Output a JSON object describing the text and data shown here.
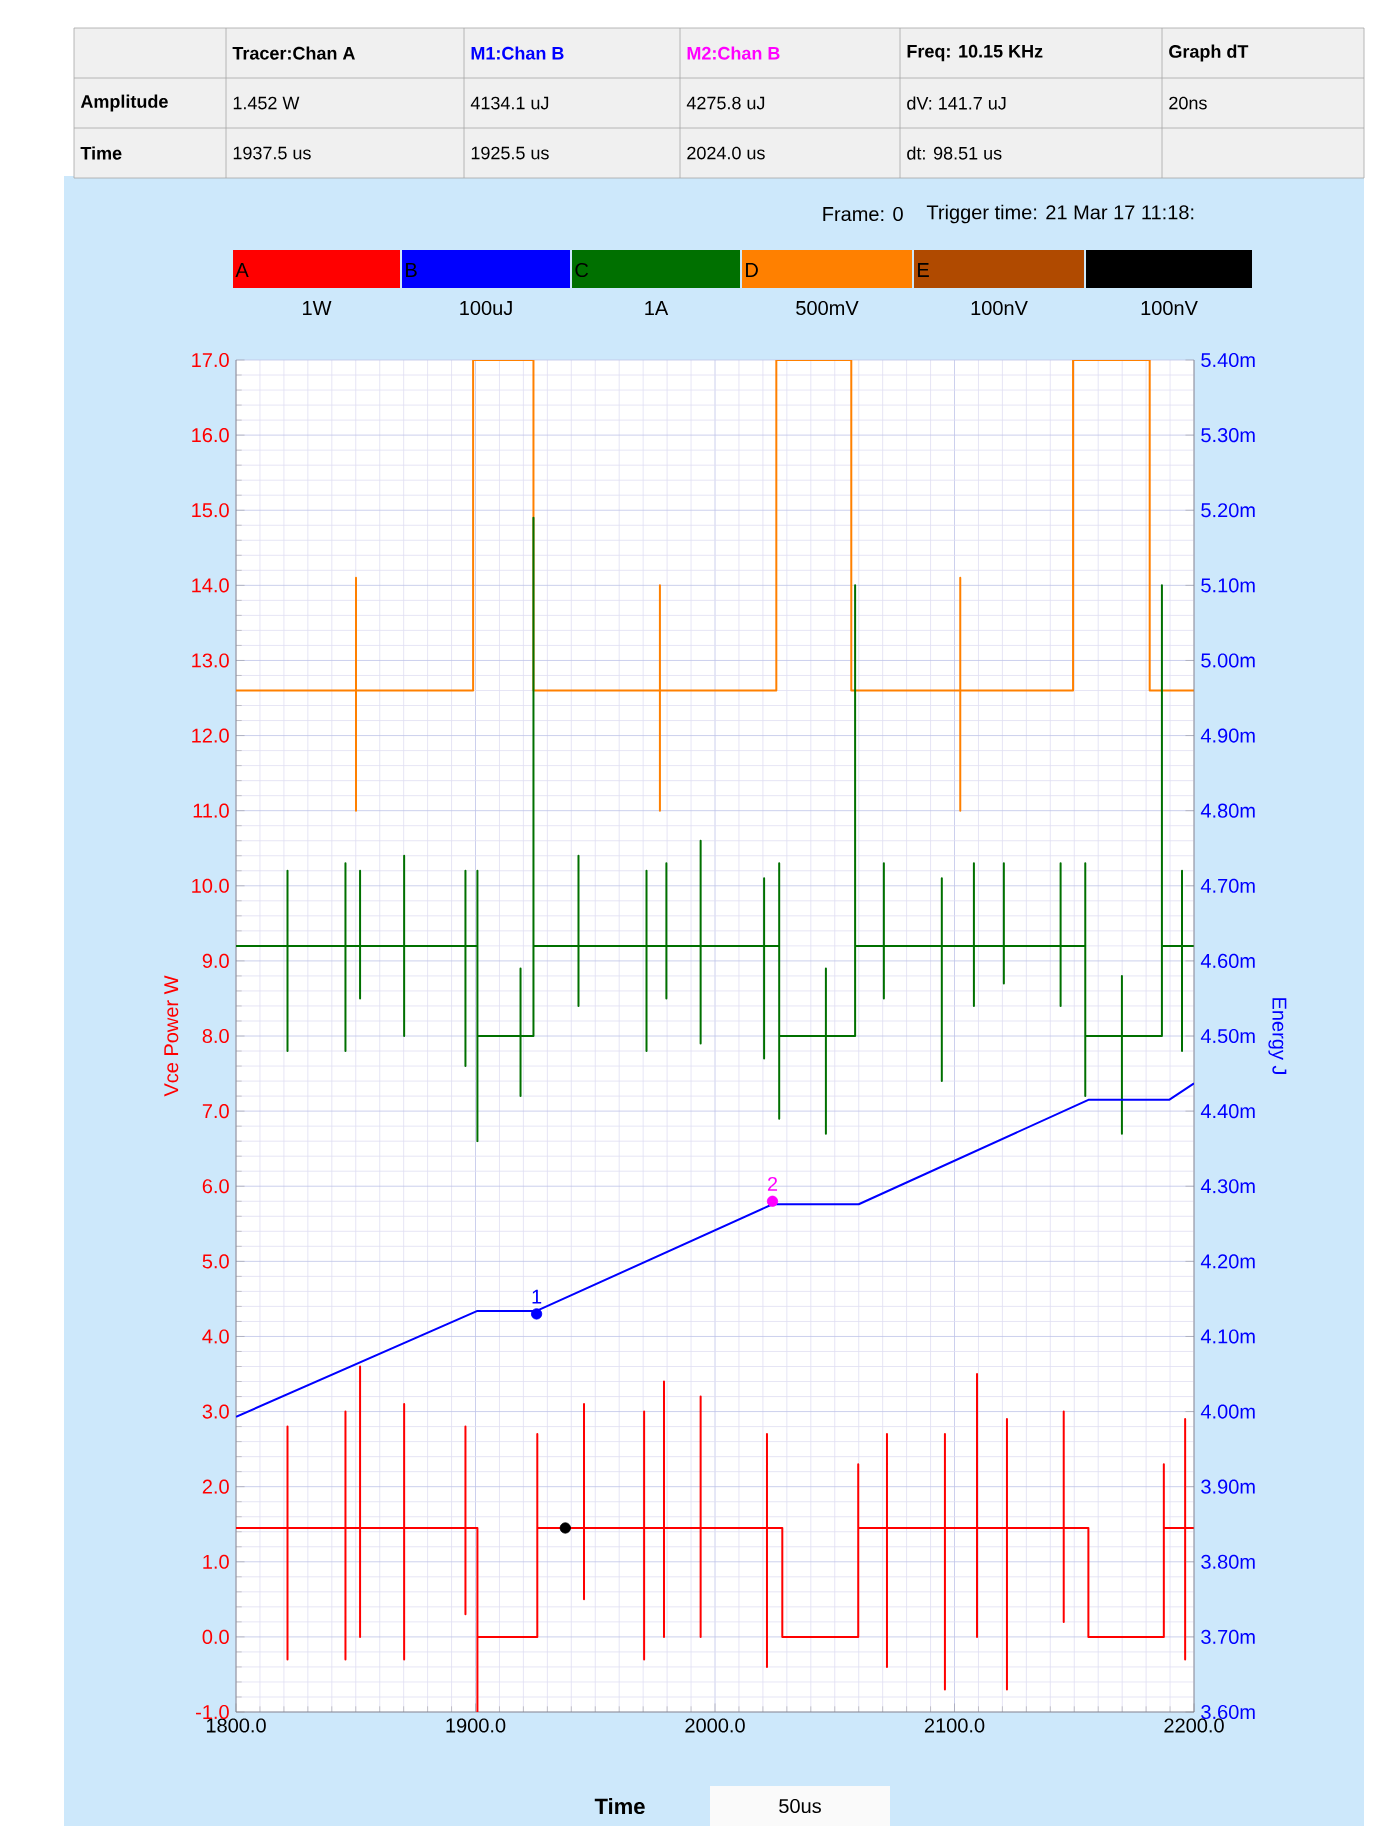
{
  "chart_data": {
    "type": "line",
    "xlabel": "Time",
    "ylabel": "Vce Power W",
    "y2label": "Energy J",
    "grid": true,
    "legend": "top",
    "xlim": [
      1800,
      2200
    ],
    "ylim": [
      -1.0,
      17.0
    ],
    "y2lim": [
      3.6,
      5.4
    ],
    "xticks": [
      {
        "value": 1800,
        "label": "1800.0"
      },
      {
        "value": 1900,
        "label": "1900.0"
      },
      {
        "value": 2000,
        "label": "2000.0"
      },
      {
        "value": 2100,
        "label": "2100.0"
      },
      {
        "value": 2200,
        "label": "2200.0"
      }
    ],
    "yticks": [
      {
        "value": -1,
        "label": "-1.0"
      },
      {
        "value": 0,
        "label": "0.0"
      },
      {
        "value": 1,
        "label": "1.0"
      },
      {
        "value": 2,
        "label": "2.0"
      },
      {
        "value": 3,
        "label": "3.0"
      },
      {
        "value": 4,
        "label": "4.0"
      },
      {
        "value": 5,
        "label": "5.0"
      },
      {
        "value": 6,
        "label": "6.0"
      },
      {
        "value": 7,
        "label": "7.0"
      },
      {
        "value": 8,
        "label": "8.0"
      },
      {
        "value": 9,
        "label": "9.0"
      },
      {
        "value": 10,
        "label": "10.0"
      },
      {
        "value": 11,
        "label": "11.0"
      },
      {
        "value": 12,
        "label": "12.0"
      },
      {
        "value": 13,
        "label": "13.0"
      },
      {
        "value": 14,
        "label": "14.0"
      },
      {
        "value": 15,
        "label": "15.0"
      },
      {
        "value": 16,
        "label": "16.0"
      },
      {
        "value": 17,
        "label": "17.0"
      }
    ],
    "y2ticks": [
      {
        "value": 3.6,
        "label": "3.60m"
      },
      {
        "value": 3.7,
        "label": "3.70m"
      },
      {
        "value": 3.8,
        "label": "3.80m"
      },
      {
        "value": 3.9,
        "label": "3.90m"
      },
      {
        "value": 4.0,
        "label": "4.00m"
      },
      {
        "value": 4.1,
        "label": "4.10m"
      },
      {
        "value": 4.2,
        "label": "4.20m"
      },
      {
        "value": 4.3,
        "label": "4.30m"
      },
      {
        "value": 4.4,
        "label": "4.40m"
      },
      {
        "value": 4.5,
        "label": "4.50m"
      },
      {
        "value": 4.6,
        "label": "4.60m"
      },
      {
        "value": 4.7,
        "label": "4.70m"
      },
      {
        "value": 4.8,
        "label": "4.80m"
      },
      {
        "value": 4.9,
        "label": "4.90m"
      },
      {
        "value": 5.0,
        "label": "5.00m"
      },
      {
        "value": 5.1,
        "label": "5.10m"
      },
      {
        "value": 5.2,
        "label": "5.20m"
      },
      {
        "value": 5.3,
        "label": "5.30m"
      },
      {
        "value": 5.4,
        "label": "5.40m"
      }
    ],
    "series": [
      {
        "name": "A",
        "color": "#ff0000",
        "x": [
          1800,
          1821.5,
          1821.5,
          1821.5,
          1821.5,
          1845.7,
          1845.7,
          1845.7,
          1845.7,
          1851.8,
          1851.8,
          1851.8,
          1851.8,
          1870.2,
          1870.2,
          1870.2,
          1870.2,
          1895.8,
          1895.8,
          1895.8,
          1895.8,
          1900.8,
          1900.8,
          1900.8,
          1925.8,
          1925.8,
          1925.8,
          1945.3,
          1945.3,
          1945.3,
          1945.3,
          1970.4,
          1970.4,
          1970.4,
          1970.4,
          1978.7,
          1978.7,
          1978.7,
          1978.7,
          1994,
          1994,
          1994,
          1994,
          2021.7,
          2021.7,
          2021.7,
          2021.7,
          2028.1,
          2028.1,
          2059.8,
          2059.8,
          2059.8,
          2071.8,
          2071.8,
          2071.8,
          2071.8,
          2096,
          2096,
          2096,
          2096,
          2109.4,
          2109.4,
          2109.4,
          2109.4,
          2121.9,
          2121.9,
          2121.9,
          2121.9,
          2145.6,
          2145.6,
          2145.6,
          2145.6,
          2155.9,
          2155.9,
          2187.4,
          2187.4,
          2187.4,
          2196.3,
          2196.3,
          2196.3,
          2196.3,
          2200
        ],
        "values": [
          1.45,
          1.45,
          2.8,
          -0.3,
          1.45,
          1.45,
          3.0,
          -0.3,
          1.45,
          1.45,
          3.6,
          0.0,
          1.45,
          1.45,
          3.1,
          -0.3,
          1.45,
          1.45,
          2.8,
          0.3,
          1.45,
          1.45,
          -1.0,
          0.0,
          0.0,
          2.7,
          1.45,
          1.45,
          3.1,
          0.5,
          1.45,
          1.45,
          3.0,
          -0.3,
          1.45,
          1.45,
          3.4,
          0.0,
          1.45,
          1.45,
          3.2,
          0.0,
          1.45,
          1.45,
          2.7,
          -0.4,
          1.45,
          1.45,
          0.0,
          0.0,
          2.3,
          1.45,
          1.45,
          2.7,
          -0.4,
          1.45,
          1.45,
          2.7,
          -0.7,
          1.45,
          1.45,
          3.5,
          0.0,
          1.45,
          1.45,
          2.9,
          -0.7,
          1.45,
          1.45,
          3.0,
          0.2,
          1.45,
          1.45,
          0.0,
          0.0,
          2.3,
          1.45,
          1.45,
          2.9,
          -0.3,
          1.45,
          1.45
        ]
      },
      {
        "name": "B",
        "color": "#0000ff",
        "axis": "y2",
        "x": [
          1800,
          1900.8,
          1925.5,
          2024.0,
          2060.0,
          2155.9,
          2189.6,
          2200
        ],
        "values": [
          3.993,
          4.134,
          4.134,
          4.276,
          4.276,
          4.415,
          4.415,
          4.437
        ]
      },
      {
        "name": "C",
        "color": "#007000",
        "x": [
          1800,
          1821.5,
          1821.5,
          1821.5,
          1821.5,
          1845.7,
          1845.7,
          1845.7,
          1845.7,
          1851.8,
          1851.8,
          1851.8,
          1851.8,
          1870.2,
          1870.2,
          1870.2,
          1870.2,
          1895.8,
          1895.8,
          1895.8,
          1895.8,
          1900.8,
          1900.8,
          1900.8,
          1900.8,
          1918.8,
          1918.8,
          1918.8,
          1918.8,
          1924.2,
          1924.2,
          1924.2,
          1943,
          1943,
          1943,
          1943,
          1971.4,
          1971.4,
          1971.4,
          1971.4,
          1979.7,
          1979.7,
          1979.7,
          1979.7,
          1994,
          1994,
          1994,
          1994,
          2020.5,
          2020.5,
          2020.5,
          2020.5,
          2026.8,
          2026.8,
          2026.8,
          2026.8,
          2046.3,
          2046.3,
          2046.3,
          2046.3,
          2058.5,
          2058.5,
          2058.5,
          2070.5,
          2070.5,
          2070.5,
          2070.5,
          2094.7,
          2094.7,
          2094.7,
          2094.7,
          2108.1,
          2108.1,
          2108.1,
          2108.1,
          2120.6,
          2120.6,
          2120.6,
          2120.6,
          2144.3,
          2144.3,
          2144.3,
          2144.3,
          2154.6,
          2154.6,
          2154.6,
          2154.6,
          2169.9,
          2169.9,
          2169.9,
          2169.9,
          2186.6,
          2186.6,
          2186.6,
          2195,
          2195,
          2195,
          2195,
          2200
        ],
        "values": [
          9.2,
          9.2,
          10.2,
          7.8,
          9.2,
          9.2,
          10.3,
          7.8,
          9.2,
          9.2,
          10.2,
          8.5,
          9.2,
          9.2,
          10.4,
          8.0,
          9.2,
          9.2,
          10.2,
          7.6,
          9.2,
          9.2,
          10.2,
          6.6,
          8.0,
          8.0,
          7.2,
          8.9,
          8.0,
          8.0,
          14.9,
          9.2,
          9.2,
          10.4,
          8.4,
          9.2,
          9.2,
          10.2,
          7.8,
          9.2,
          9.2,
          10.3,
          8.5,
          9.2,
          9.2,
          10.6,
          7.9,
          9.2,
          9.2,
          10.1,
          7.7,
          9.2,
          9.2,
          10.3,
          6.9,
          8.0,
          8.0,
          6.7,
          8.9,
          8.0,
          8.0,
          14.0,
          9.2,
          9.2,
          10.3,
          8.5,
          9.2,
          9.2,
          10.1,
          7.4,
          9.2,
          9.2,
          10.3,
          8.4,
          9.2,
          9.2,
          10.3,
          8.7,
          9.2,
          9.2,
          10.3,
          8.4,
          9.2,
          9.2,
          10.3,
          7.2,
          8.0,
          8.0,
          6.7,
          8.8,
          8.0,
          8.0,
          14.0,
          9.2,
          9.2,
          10.2,
          7.8,
          9.2,
          9.2
        ]
      },
      {
        "name": "D",
        "color": "#ff8000",
        "x": [
          1800,
          1850.1,
          1850.1,
          1850.1,
          1850.1,
          1899,
          1899,
          1924.2,
          1924.2,
          1977,
          1977,
          1977,
          1977,
          2025.6,
          2025.6,
          2056.9,
          2056.9,
          2102.4,
          2102.4,
          2102.4,
          2102.4,
          2149.5,
          2149.5,
          2181.5,
          2181.5,
          2200
        ],
        "values": [
          12.6,
          12.6,
          14.1,
          11.0,
          12.6,
          12.6,
          17.0,
          17.0,
          12.6,
          12.6,
          14.0,
          11.0,
          12.6,
          12.6,
          17.0,
          17.0,
          12.6,
          12.6,
          14.1,
          11.0,
          12.6,
          12.6,
          17.0,
          17.0,
          12.6,
          12.6
        ]
      },
      {
        "type": "scatter",
        "color": "#000000",
        "x": [
          1937.5
        ],
        "values": [
          1.45
        ]
      },
      {
        "type": "scatter",
        "color": "#0000ff",
        "axis": "y2",
        "x": [
          1925.5
        ],
        "values": [
          4.13
        ]
      },
      {
        "type": "scatter",
        "color": "#ff00ff",
        "axis": "y2",
        "x": [
          2024.0
        ],
        "values": [
          4.28
        ]
      }
    ],
    "annotations": [
      "Tracer:Chan A",
      "M1:Chan B",
      "M2:Chan B",
      "Freq: 10.15 KHz",
      "Graph dT",
      "Amplitude",
      "1.452 W",
      "4134.1 uJ",
      "4275.8 uJ",
      "dV: 141.7 uJ",
      "20ns",
      "Time",
      "1937.5 us",
      "1925.5 us",
      "2024.0 us",
      "dt:  98.51 us",
      "Frame: 0",
      "Trigger time: 21 Mar 17 11:18:",
      "1W",
      "100uJ",
      "1A",
      "500mV",
      "100nV",
      "100nV",
      "E",
      "50us",
      "1",
      "2"
    ]
  }
}
